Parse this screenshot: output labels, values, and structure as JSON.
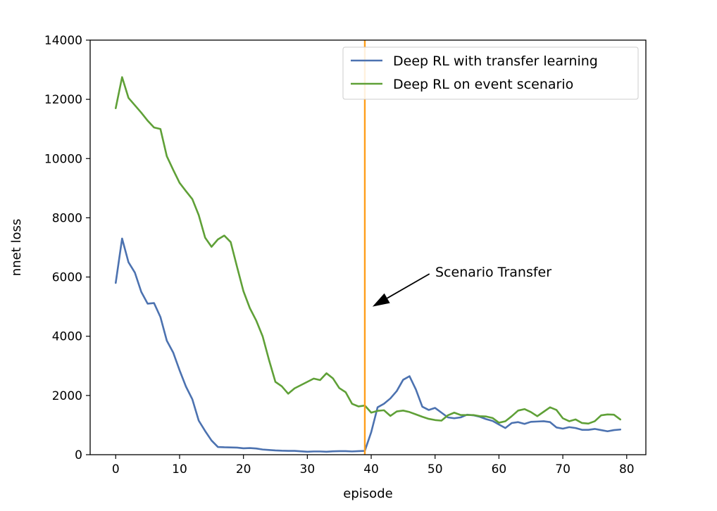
{
  "chart_data": {
    "type": "line",
    "xlabel": "episode",
    "ylabel": "nnet loss",
    "xlim": [
      -4,
      83
    ],
    "ylim": [
      0,
      14000
    ],
    "xticks": [
      0,
      10,
      20,
      30,
      40,
      50,
      60,
      70,
      80
    ],
    "yticks": [
      0,
      2000,
      4000,
      6000,
      8000,
      10000,
      12000,
      14000
    ],
    "grid": false,
    "legend_position": "top-right",
    "series": [
      {
        "name": "Deep RL with transfer learning",
        "color": "#4c72b0",
        "x": [
          0,
          1,
          2,
          3,
          4,
          5,
          6,
          7,
          8,
          9,
          10,
          11,
          12,
          13,
          14,
          15,
          16,
          17,
          18,
          19,
          20,
          21,
          22,
          23,
          24,
          25,
          26,
          27,
          28,
          29,
          30,
          31,
          32,
          33,
          34,
          35,
          36,
          37,
          38,
          39,
          40,
          41,
          42,
          43,
          44,
          45,
          46,
          47,
          48,
          49,
          50,
          51,
          52,
          53,
          54,
          55,
          56,
          57,
          58,
          59,
          60,
          61,
          62,
          63,
          64,
          65,
          66,
          67,
          68,
          69,
          70,
          71,
          72,
          73,
          74,
          75,
          76,
          77,
          78,
          79
        ],
        "values": [
          5800,
          7300,
          6500,
          6150,
          5500,
          5100,
          5120,
          4650,
          3850,
          3450,
          2850,
          2300,
          1870,
          1150,
          800,
          480,
          260,
          250,
          245,
          240,
          215,
          225,
          210,
          175,
          160,
          145,
          135,
          130,
          130,
          115,
          100,
          110,
          110,
          100,
          115,
          120,
          120,
          110,
          120,
          130,
          760,
          1600,
          1720,
          1900,
          2150,
          2530,
          2650,
          2200,
          1620,
          1510,
          1580,
          1420,
          1260,
          1230,
          1260,
          1350,
          1330,
          1280,
          1200,
          1140,
          1020,
          900,
          1070,
          1100,
          1040,
          1110,
          1120,
          1130,
          1100,
          920,
          880,
          930,
          900,
          840,
          840,
          870,
          830,
          790,
          830,
          850
        ]
      },
      {
        "name": "Deep RL on event scenario",
        "color": "#5fa037",
        "x": [
          0,
          1,
          2,
          3,
          4,
          5,
          6,
          7,
          8,
          9,
          10,
          11,
          12,
          13,
          14,
          15,
          16,
          17,
          18,
          19,
          20,
          21,
          22,
          23,
          24,
          25,
          26,
          27,
          28,
          29,
          30,
          31,
          32,
          33,
          34,
          35,
          36,
          37,
          38,
          39,
          40,
          41,
          42,
          43,
          44,
          45,
          46,
          47,
          48,
          49,
          50,
          51,
          52,
          53,
          54,
          55,
          56,
          57,
          58,
          59,
          60,
          61,
          62,
          63,
          64,
          65,
          66,
          67,
          68,
          69,
          70,
          71,
          72,
          73,
          74,
          75,
          76,
          77,
          78,
          79
        ],
        "values": [
          11700,
          12750,
          12050,
          11800,
          11550,
          11280,
          11050,
          11000,
          10080,
          9620,
          9180,
          8900,
          8630,
          8090,
          7330,
          7020,
          7270,
          7400,
          7180,
          6340,
          5520,
          4950,
          4530,
          4000,
          3200,
          2460,
          2310,
          2060,
          2240,
          2350,
          2460,
          2570,
          2520,
          2750,
          2580,
          2250,
          2110,
          1720,
          1630,
          1660,
          1420,
          1480,
          1500,
          1310,
          1460,
          1490,
          1440,
          1360,
          1280,
          1210,
          1170,
          1150,
          1330,
          1420,
          1340,
          1340,
          1340,
          1300,
          1290,
          1240,
          1080,
          1130,
          1300,
          1490,
          1540,
          1440,
          1300,
          1450,
          1600,
          1510,
          1230,
          1130,
          1190,
          1070,
          1050,
          1130,
          1330,
          1360,
          1350,
          1190
        ]
      }
    ],
    "vlines": [
      {
        "x": 39,
        "color": "#ff9e1b"
      }
    ],
    "annotations": [
      {
        "text": "Scenario Transfer",
        "xytext": [
          50,
          6200
        ],
        "xy": [
          40.2,
          5000
        ]
      }
    ]
  }
}
